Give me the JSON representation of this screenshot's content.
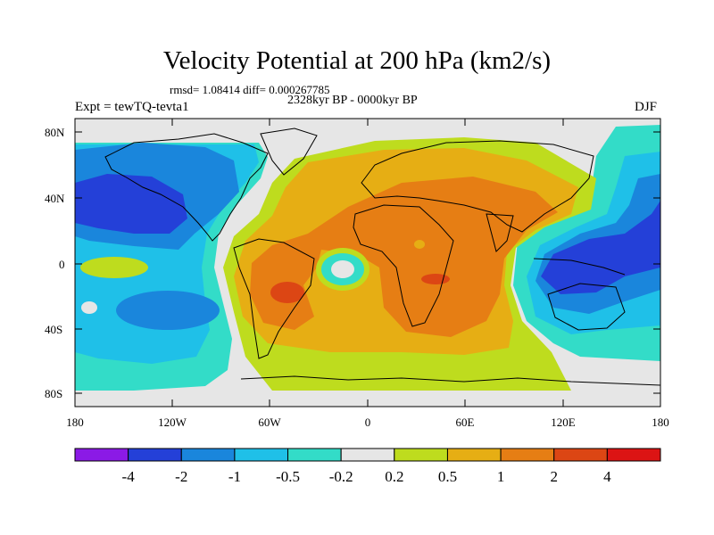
{
  "title": "Velocity Potential at 200 hPa (km2/s)",
  "stats": "rmsd= 1.08414 diff= 0.000267785",
  "period": "2328kyr BP - 0000kyr BP",
  "experiment": "Expt = tewTQ-tevta1",
  "season": "DJF",
  "axes": {
    "y_ticks": [
      "80N",
      "40N",
      "0",
      "40S",
      "80S"
    ],
    "x_ticks": [
      "180",
      "120W",
      "60W",
      "0",
      "60E",
      "120E",
      "180"
    ]
  },
  "colorbar": {
    "colors": [
      "#8b1ae6",
      "#2440d8",
      "#1a86dc",
      "#1fc0e8",
      "#33dcc8",
      "#e6e6e6",
      "#bedc1e",
      "#e6ae14",
      "#e67e14",
      "#dc4614",
      "#dc1414"
    ],
    "labels": [
      "-4",
      "-2",
      "-1",
      "-0.5",
      "-0.2",
      "0.2",
      "0.5",
      "1",
      "2",
      "4"
    ]
  },
  "map_colors": {
    "land_outline": "#000000",
    "neutral": "#e6e6e6",
    "positive_low": "#bedc1e",
    "positive_mid": "#e6ae14",
    "positive_high": "#e67e14",
    "positive_max": "#dc4614",
    "negative_low": "#33dcc8",
    "negative_mid": "#1fc0e8",
    "negative_high": "#1a86dc",
    "negative_max": "#2440d8"
  }
}
